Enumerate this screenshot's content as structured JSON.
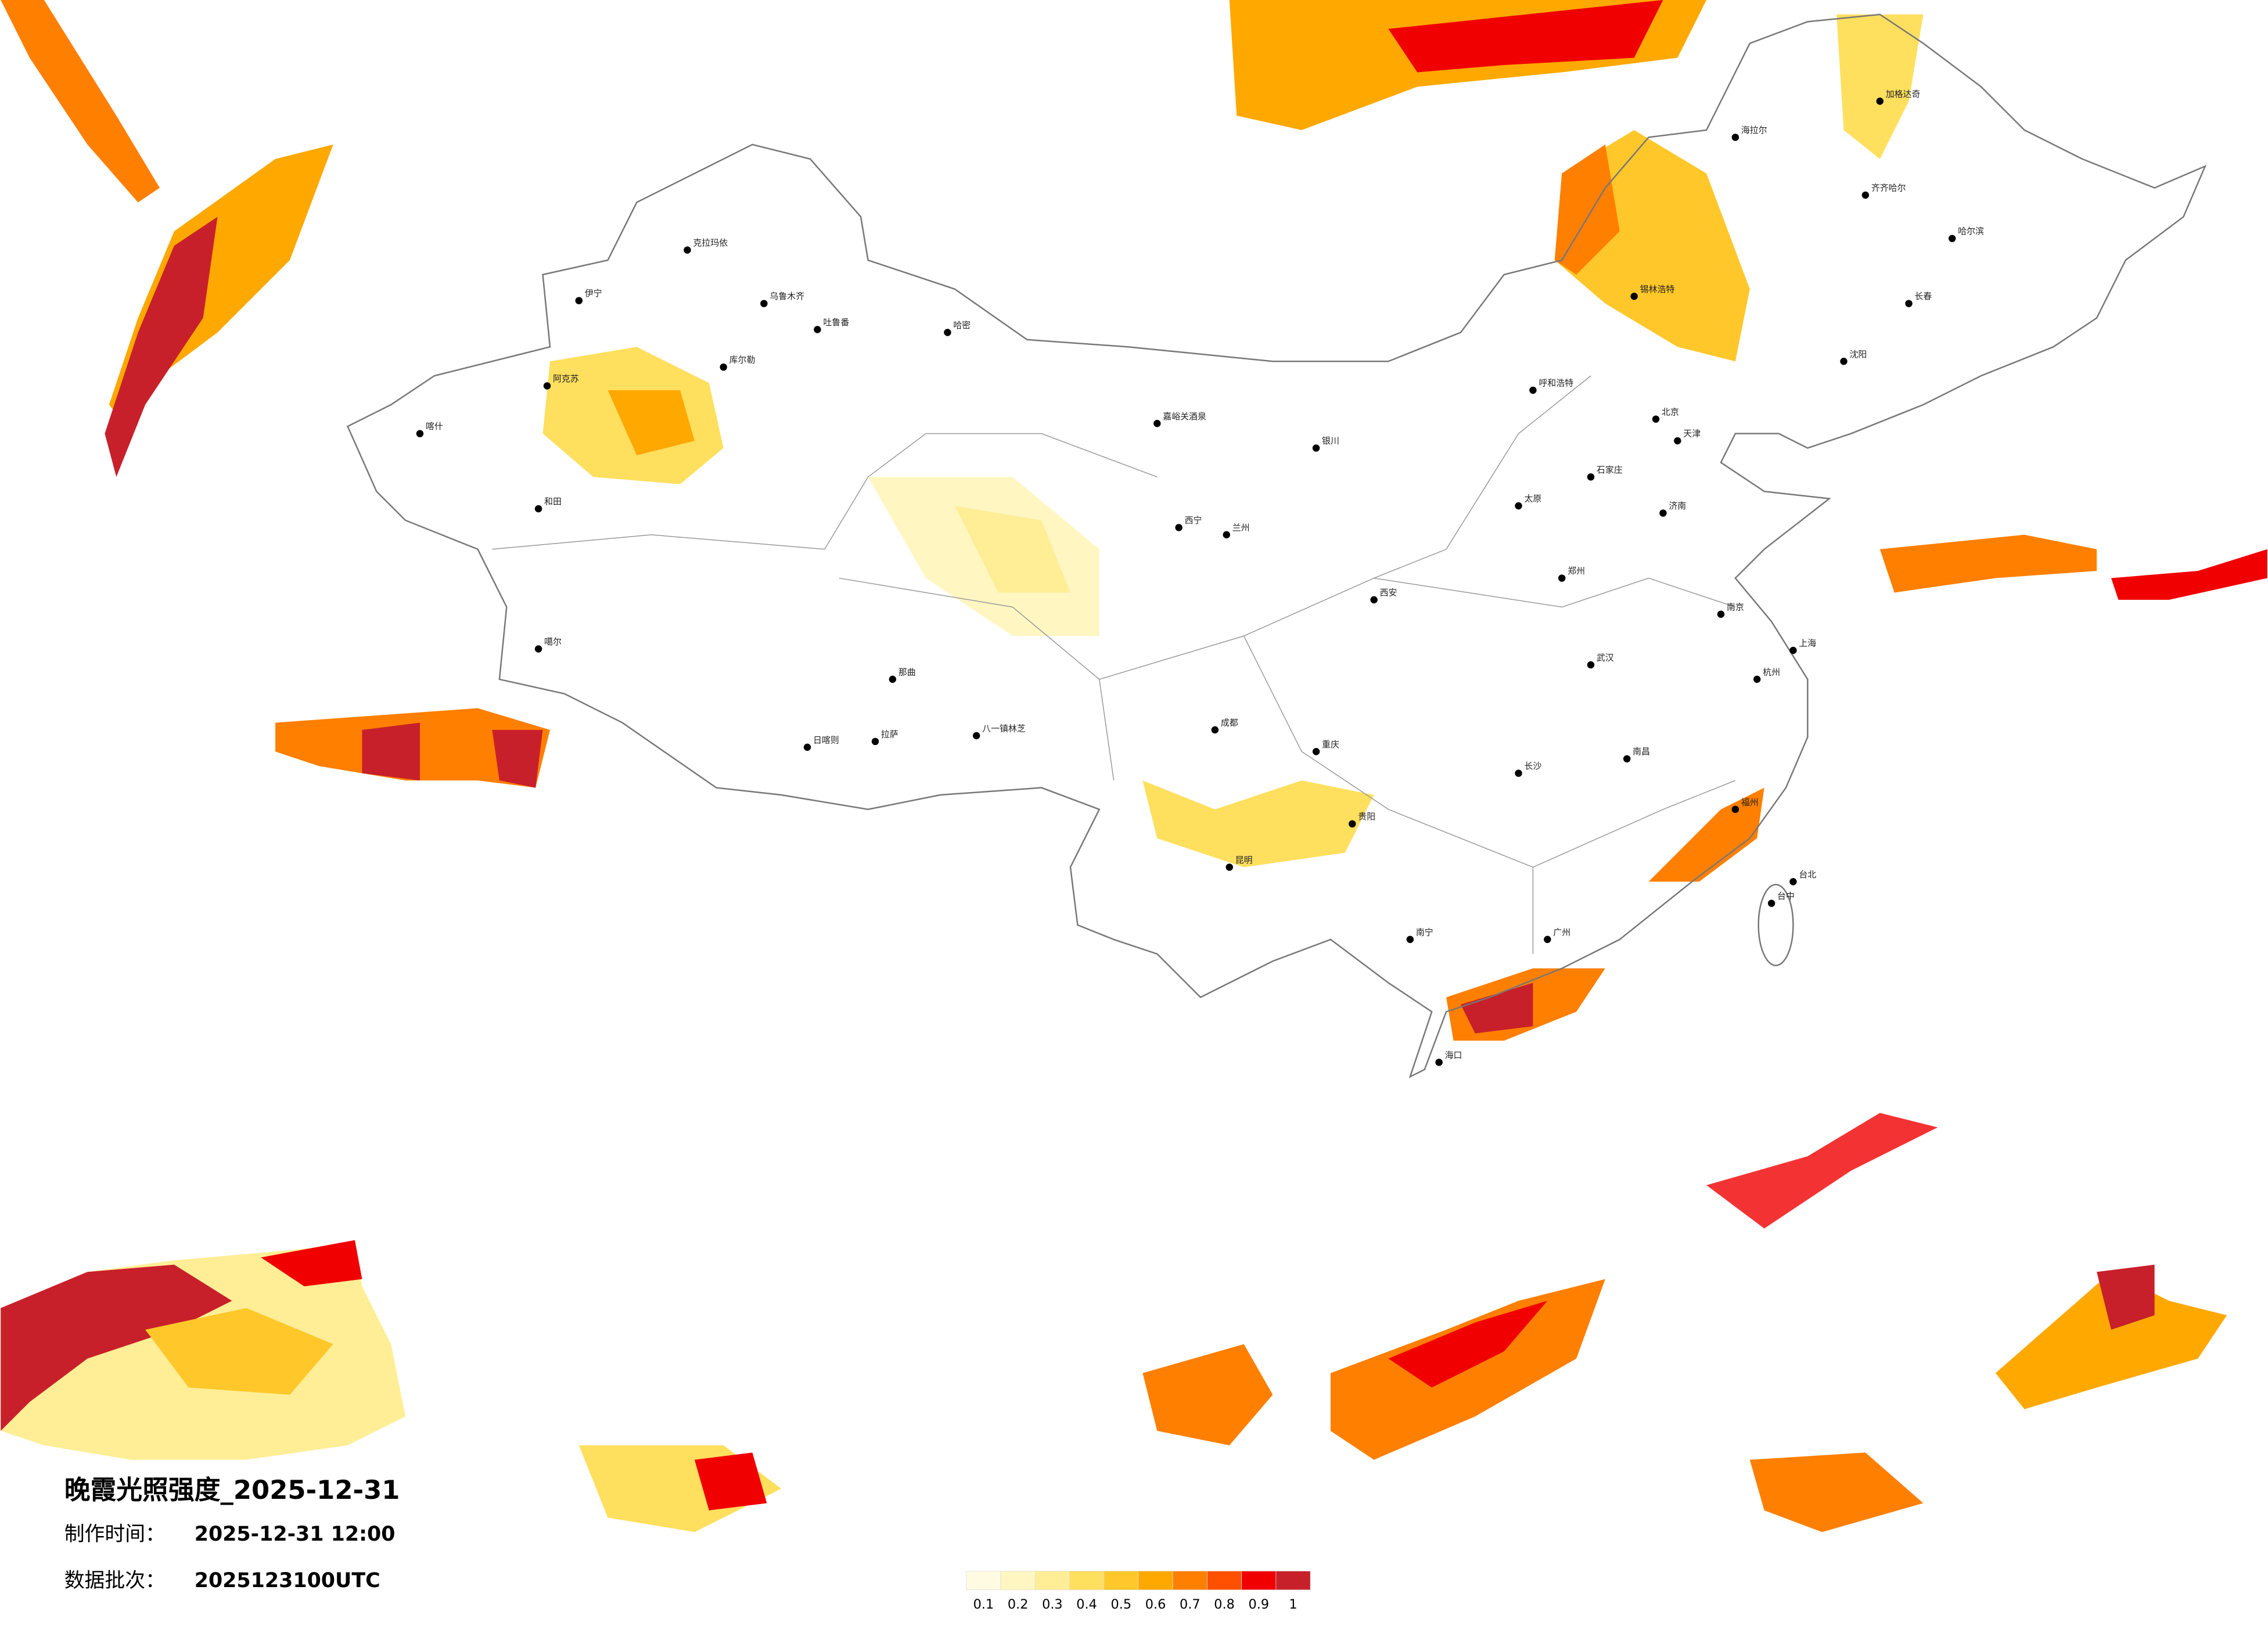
{
  "header": {
    "title": "晚霞光照强度_2025-12-31",
    "info": [
      {
        "label": "制作时间：",
        "value": "2025-12-31 12:00"
      },
      {
        "label": "数据批次：",
        "value": "2025123100UTC"
      }
    ]
  },
  "legend": {
    "colors": [
      "#fffbe3",
      "#fff6c2",
      "#ffee96",
      "#ffdf5e",
      "#ffc72a",
      "#ffa800",
      "#ff7f00",
      "#ff4f00",
      "#f00000",
      "#c8202a"
    ],
    "labels": [
      0.1,
      0.2,
      0.3,
      0.4,
      0.5,
      0.6,
      0.7,
      0.8,
      0.9,
      1
    ]
  },
  "cities": [
    "克拉玛依",
    "乌鲁木齐",
    "伊宁",
    "阿克苏",
    "喀什",
    "和田",
    "库尔勒",
    "哈密",
    "吐鲁番",
    "拉萨",
    "日喀则",
    "八一镇林芝",
    "那曲",
    "噶尔",
    "嘉峪关酒泉",
    "西宁",
    "兰州",
    "银川",
    "呼和浩特",
    "北京",
    "天津",
    "石家庄",
    "太原",
    "济南",
    "郑州",
    "西安",
    "成都",
    "重庆",
    "武汉",
    "南京",
    "上海",
    "杭州",
    "长沙",
    "南昌",
    "福州",
    "广州",
    "南宁",
    "昆明",
    "贵阳",
    "海口",
    "哈尔滨",
    "长春",
    "沈阳",
    "齐齐哈尔",
    "海拉尔",
    "锡林浩特",
    "台北",
    "台中",
    "加格达奇"
  ]
}
